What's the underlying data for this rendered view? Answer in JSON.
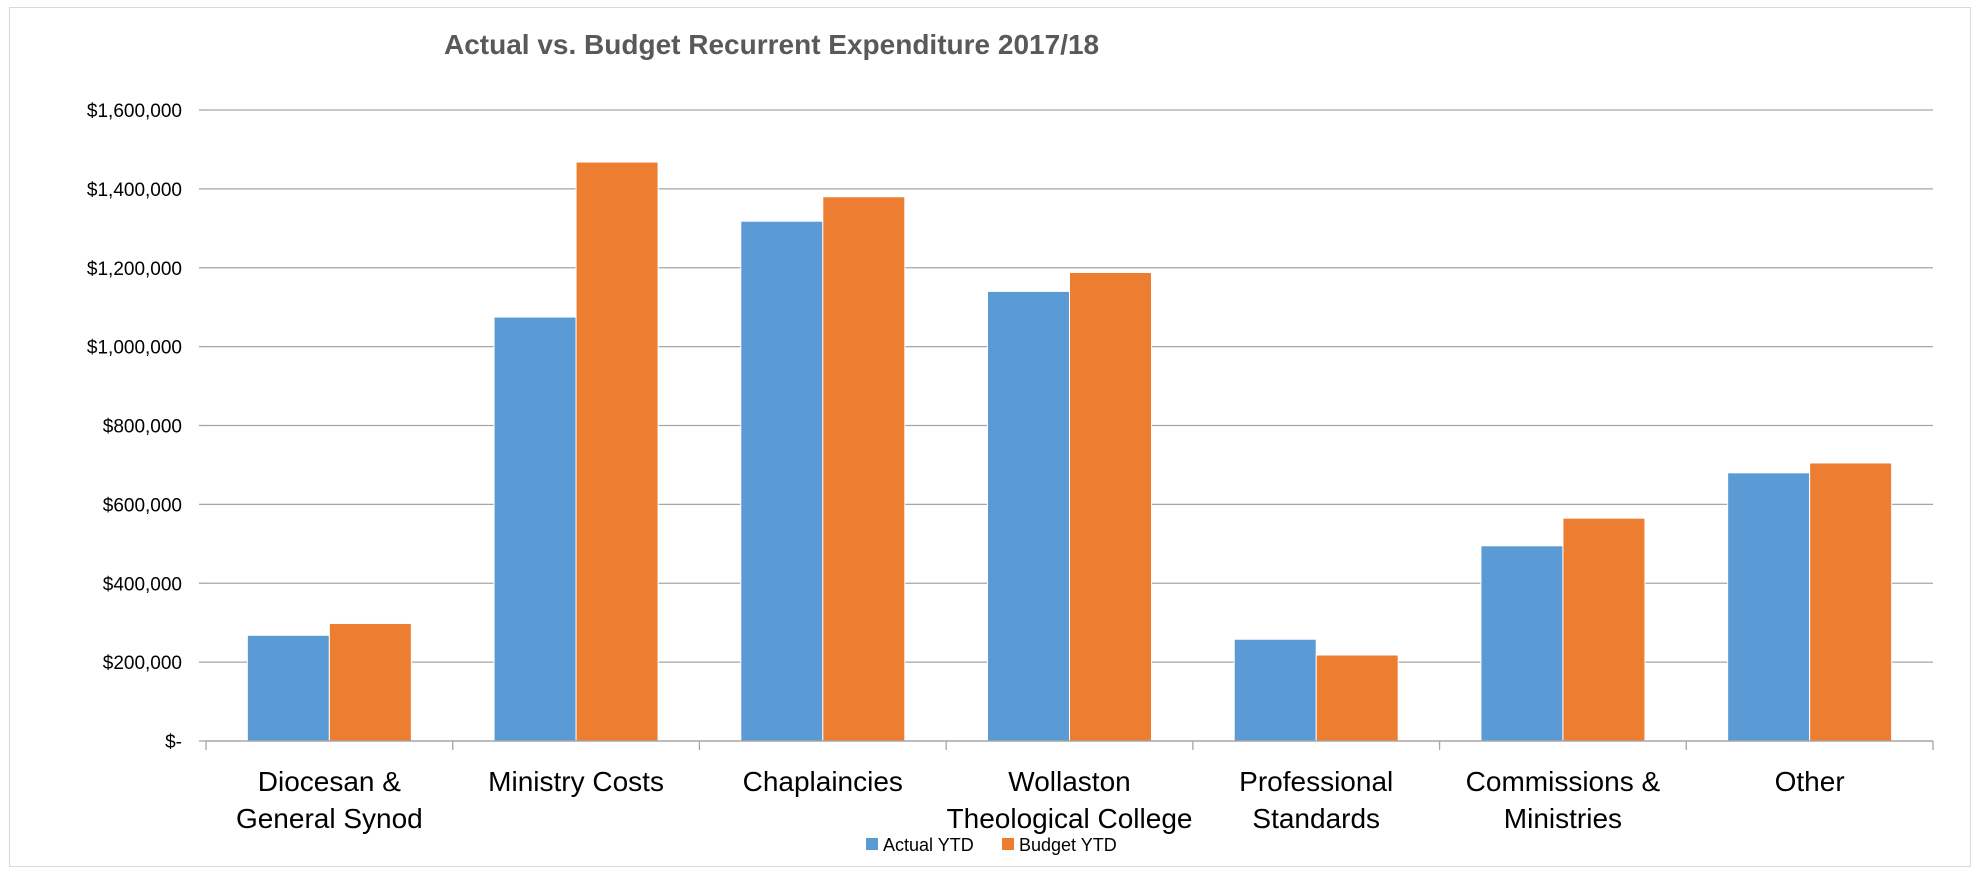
{
  "chart_data": {
    "type": "bar",
    "title": "Actual vs. Budget Recurrent Expenditure 2017/18",
    "xlabel": "",
    "ylabel": "",
    "categories": [
      [
        "Diocesan &",
        "General Synod"
      ],
      [
        "Ministry Costs"
      ],
      [
        "Chaplaincies"
      ],
      [
        "Wollaston",
        "Theological College"
      ],
      [
        "Professional",
        "Standards"
      ],
      [
        "Commissions &",
        "Ministries"
      ],
      [
        "Other"
      ]
    ],
    "series": [
      {
        "name": "Actual YTD",
        "color": "#5B9BD5",
        "values": [
          268000,
          1075000,
          1318000,
          1140000,
          258000,
          495000,
          680000
        ]
      },
      {
        "name": "Budget YTD",
        "color": "#ED7D31",
        "values": [
          298000,
          1468000,
          1380000,
          1188000,
          218000,
          565000,
          705000
        ]
      }
    ],
    "ylim": [
      0,
      1600000
    ],
    "yticks": [
      0,
      200000,
      400000,
      600000,
      800000,
      1000000,
      1200000,
      1400000,
      1600000
    ],
    "ytick_labels": [
      "$-",
      "$200,000",
      "$400,000",
      "$600,000",
      "$800,000",
      "$1,000,000",
      "$1,200,000",
      "$1,400,000",
      "$1,600,000"
    ],
    "grid": true,
    "legend_position": "bottom",
    "colors": {
      "grid": "#a6a6a6",
      "axis": "#a6a6a6",
      "title": "#595959"
    }
  }
}
